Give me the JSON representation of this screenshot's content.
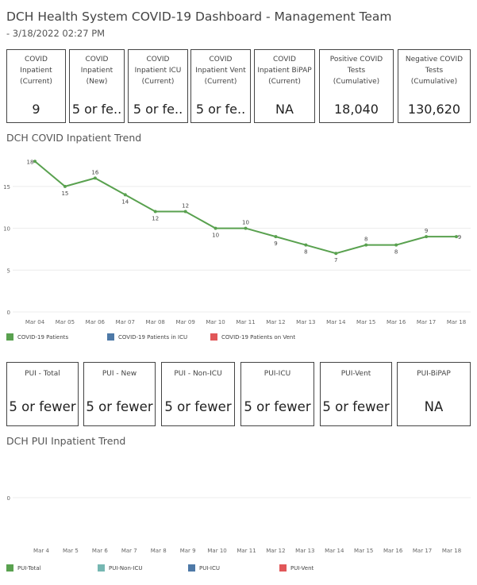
{
  "header": {
    "title": "DCH Health System COVID-19 Dashboard - Management Team",
    "timestamp": " - 3/18/2022 02:27 PM"
  },
  "kpis_top": [
    {
      "label": "COVID\nInpatient\n(Current)",
      "value": "9"
    },
    {
      "label": "COVID\nInpatient\n(New)",
      "value": "5 or fe.."
    },
    {
      "label": "COVID\nInpatient ICU\n(Current)",
      "value": "5 or fe.."
    },
    {
      "label": "COVID\nInpatient Vent\n(Current)",
      "value": "5 or fe.."
    },
    {
      "label": "COVID\nInpatient BiPAP\n(Current)",
      "value": "NA"
    },
    {
      "label": "Positive COVID\nTests\n(Cumulative)",
      "value": "18,040"
    },
    {
      "label": "Negative COVID\nTests\n(Cumulative)",
      "value": "130,620"
    }
  ],
  "kpis_pui": [
    {
      "label": "PUI - Total",
      "value": "5 or fewer"
    },
    {
      "label": "PUI - New",
      "value": "5 or fewer"
    },
    {
      "label": "PUI - Non-ICU",
      "value": "5 or fewer"
    },
    {
      "label": "PUI-ICU",
      "value": "5 or fewer"
    },
    {
      "label": "PUI-Vent",
      "value": "5 or fewer"
    },
    {
      "label": "PUI-BiPAP",
      "value": "NA"
    }
  ],
  "sections": {
    "covid_trend_title": "DCH COVID Inpatient Trend",
    "pui_trend_title": "DCH PUI Inpatient Trend"
  },
  "colors": {
    "green": "#59a14f",
    "blue": "#4e79a7",
    "red": "#e15759",
    "teal": "#76b7b2",
    "grid": "#ececec"
  },
  "chart_data": [
    {
      "type": "line",
      "title": "DCH COVID Inpatient Trend",
      "x": [
        "Mar 04",
        "Mar 05",
        "Mar 06",
        "Mar 07",
        "Mar 08",
        "Mar 09",
        "Mar 10",
        "Mar 11",
        "Mar 12",
        "Mar 13",
        "Mar 14",
        "Mar 15",
        "Mar 16",
        "Mar 17",
        "Mar 18"
      ],
      "series": [
        {
          "name": "COVID-19 Patients",
          "color": "#59a14f",
          "values": [
            18,
            15,
            16,
            14,
            12,
            12,
            10,
            10,
            9,
            8,
            7,
            8,
            8,
            9,
            9
          ]
        }
      ],
      "legend": [
        {
          "name": "COVID-19 Patients",
          "color": "#59a14f"
        },
        {
          "name": "COVID-19 Patients in ICU",
          "color": "#4e79a7"
        },
        {
          "name": "COVID-19 Patients on Vent",
          "color": "#e15759"
        }
      ],
      "yticks": [
        0,
        5,
        10,
        15
      ],
      "ylim": [
        0,
        18.5
      ],
      "grid": true,
      "legend_position": "bottom"
    },
    {
      "type": "line",
      "title": "DCH PUI Inpatient Trend",
      "x": [
        "Mar 4",
        "Mar 5",
        "Mar 6",
        "Mar 7",
        "Mar 8",
        "Mar 9",
        "Mar 10",
        "Mar 11",
        "Mar 12",
        "Mar 13",
        "Mar 14",
        "Mar 15",
        "Mar 16",
        "Mar 17",
        "Mar 18"
      ],
      "series": [],
      "legend": [
        {
          "name": "PUI-Total",
          "color": "#59a14f"
        },
        {
          "name": "PUI-Non-ICU",
          "color": "#76b7b2"
        },
        {
          "name": "PUI-ICU",
          "color": "#4e79a7"
        },
        {
          "name": "PUI-Vent",
          "color": "#e15759"
        }
      ],
      "yticks": [
        0
      ],
      "grid": true,
      "legend_position": "bottom"
    }
  ]
}
